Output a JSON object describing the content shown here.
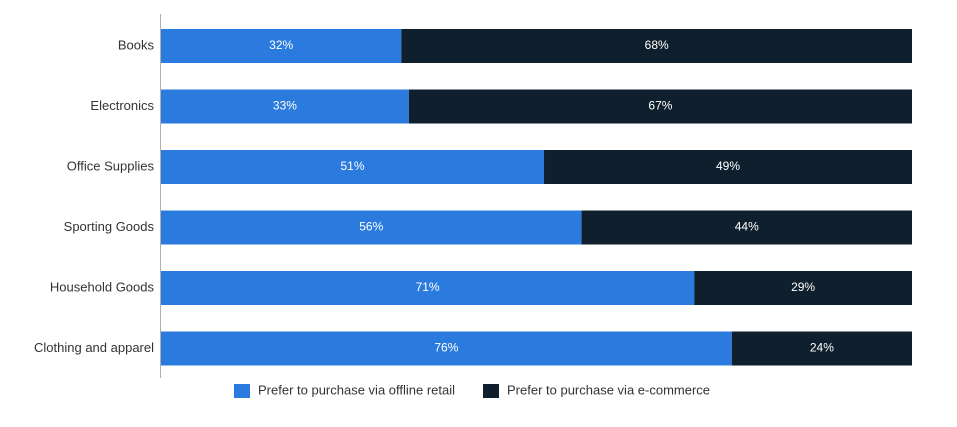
{
  "chart_data": {
    "type": "bar",
    "orientation": "horizontal",
    "stacked": true,
    "normalized": true,
    "categories": [
      "Books",
      "Electronics",
      "Office Supplies",
      "Sporting Goods",
      "Household Goods",
      "Clothing and apparel"
    ],
    "series": [
      {
        "name": "Prefer to purchase via offline retail",
        "values": [
          32,
          33,
          51,
          56,
          71,
          76
        ],
        "labels": [
          "32%",
          "33%",
          "51%",
          "56%",
          "71%",
          "76%"
        ],
        "color": "#2b7bdf"
      },
      {
        "name": "Prefer to purchase via e-commerce",
        "values": [
          68,
          67,
          49,
          44,
          29,
          24
        ],
        "labels": [
          "68%",
          "67%",
          "49%",
          "44%",
          "29%",
          "24%"
        ],
        "color": "#0f1f2e"
      }
    ],
    "xlim": [
      0,
      100
    ],
    "grid": false,
    "legend_position": "bottom-center",
    "title": "",
    "xlabel": "",
    "ylabel": ""
  }
}
